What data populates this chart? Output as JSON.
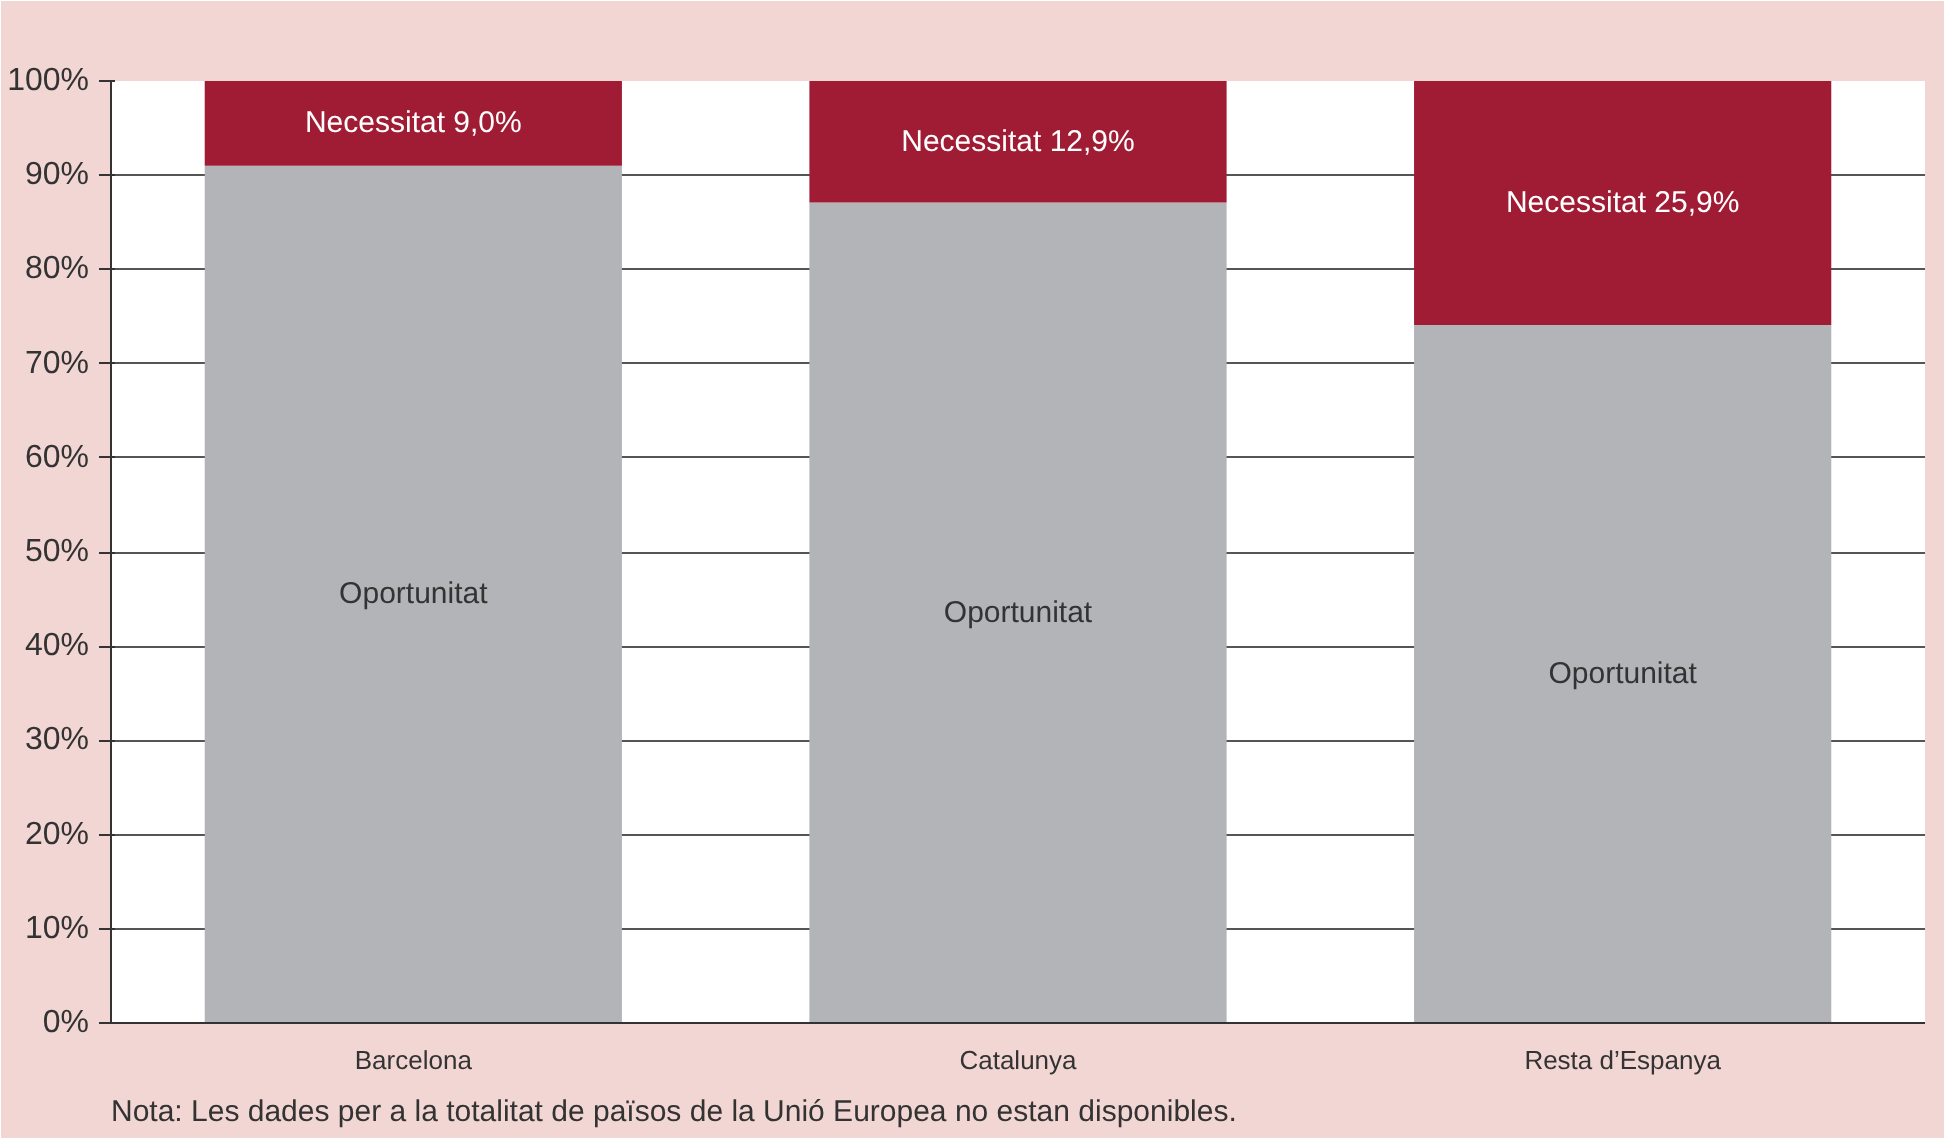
{
  "chart_data": {
    "type": "bar",
    "stacked": true,
    "categories": [
      "Barcelona",
      "Catalunya",
      "Resta d’Espanya"
    ],
    "series": [
      {
        "name": "Oportunitat",
        "color": "#b3b4b7",
        "values": [
          91.0,
          87.1,
          74.1
        ]
      },
      {
        "name": "Necessitat",
        "color": "#a01c35",
        "values": [
          9.0,
          12.9,
          25.9
        ],
        "value_labels": [
          "9,0%",
          "12,9%",
          "25,9%"
        ]
      }
    ],
    "ylim": [
      0,
      100
    ],
    "yticks": [
      {
        "value": 0,
        "label": "0%"
      },
      {
        "value": 10,
        "label": "10%"
      },
      {
        "value": 20,
        "label": "20%"
      },
      {
        "value": 30,
        "label": "30%"
      },
      {
        "value": 40,
        "label": "40%"
      },
      {
        "value": 50,
        "label": "50%"
      },
      {
        "value": 60,
        "label": "60%"
      },
      {
        "value": 70,
        "label": "70%"
      },
      {
        "value": 80,
        "label": "80%"
      },
      {
        "value": 90,
        "label": "90%"
      },
      {
        "value": 100,
        "label": "100%"
      }
    ],
    "grid": "y",
    "annotations": [
      "Nota: Les dades per a la totalitat de països de la Unió Europea no estan disponibles."
    ]
  }
}
